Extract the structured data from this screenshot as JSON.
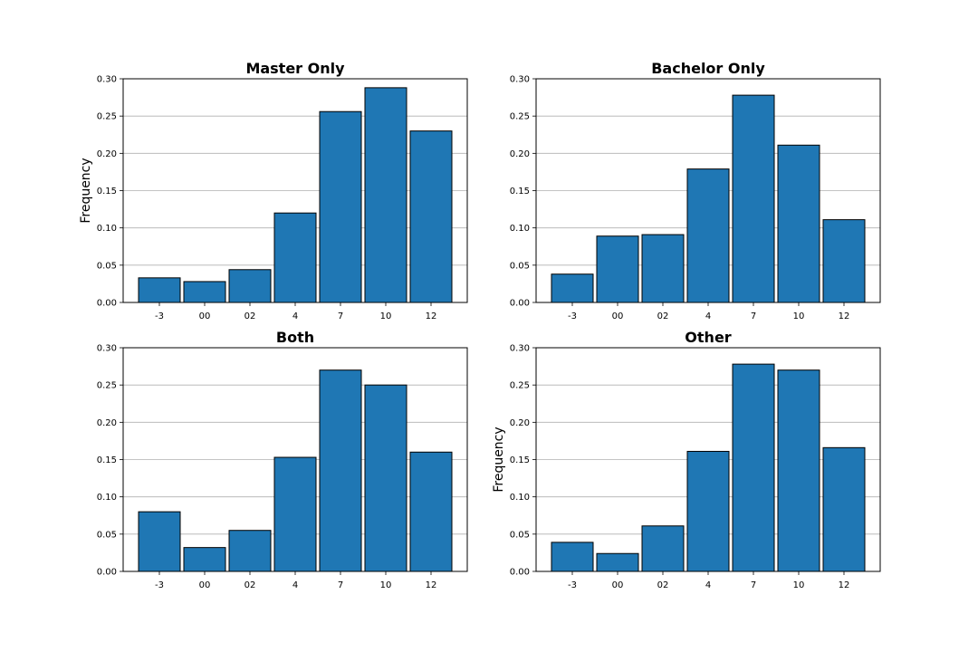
{
  "chart_data": [
    {
      "type": "bar",
      "title": "Master Only",
      "xlabel": "",
      "ylabel": "Frequency",
      "categories": [
        "-3",
        "00",
        "02",
        "4",
        "7",
        "10",
        "12"
      ],
      "values": [
        0.033,
        0.028,
        0.044,
        0.12,
        0.256,
        0.288,
        0.23
      ],
      "ylim": [
        0,
        0.3
      ],
      "yticks": [
        "0.00",
        "0.05",
        "0.10",
        "0.15",
        "0.20",
        "0.25",
        "0.30"
      ],
      "grid": "horizontal",
      "bar_color": "#1f77b4",
      "edge_color": "#000000"
    },
    {
      "type": "bar",
      "title": "Bachelor Only",
      "xlabel": "",
      "ylabel": "",
      "categories": [
        "-3",
        "00",
        "02",
        "4",
        "7",
        "10",
        "12"
      ],
      "values": [
        0.038,
        0.089,
        0.091,
        0.179,
        0.278,
        0.211,
        0.111
      ],
      "ylim": [
        0,
        0.3
      ],
      "yticks": [
        "0.00",
        "0.05",
        "0.10",
        "0.15",
        "0.20",
        "0.25",
        "0.30"
      ],
      "grid": "horizontal",
      "bar_color": "#1f77b4",
      "edge_color": "#000000"
    },
    {
      "type": "bar",
      "title": "Both",
      "xlabel": "",
      "ylabel": "",
      "categories": [
        "-3",
        "00",
        "02",
        "4",
        "7",
        "10",
        "12"
      ],
      "values": [
        0.08,
        0.032,
        0.055,
        0.153,
        0.27,
        0.25,
        0.16
      ],
      "ylim": [
        0,
        0.3
      ],
      "yticks": [
        "0.00",
        "0.05",
        "0.10",
        "0.15",
        "0.20",
        "0.25",
        "0.30"
      ],
      "grid": "horizontal",
      "bar_color": "#1f77b4",
      "edge_color": "#000000"
    },
    {
      "type": "bar",
      "title": "Other",
      "xlabel": "",
      "ylabel": "Frequency",
      "categories": [
        "-3",
        "00",
        "02",
        "4",
        "7",
        "10",
        "12"
      ],
      "values": [
        0.039,
        0.024,
        0.061,
        0.161,
        0.278,
        0.27,
        0.166
      ],
      "ylim": [
        0,
        0.3
      ],
      "yticks": [
        "0.00",
        "0.05",
        "0.10",
        "0.15",
        "0.20",
        "0.25",
        "0.30"
      ],
      "grid": "horizontal",
      "bar_color": "#1f77b4",
      "edge_color": "#000000"
    }
  ]
}
